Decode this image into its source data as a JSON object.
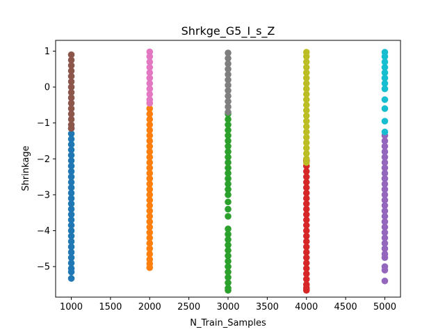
{
  "chart_data": {
    "type": "scatter",
    "title": "Shrkge_G5_I_s_Z",
    "xlabel": "N_Train_Samples",
    "ylabel": "Shrinkage",
    "xlim": [
      800,
      5200
    ],
    "ylim": [
      -5.85,
      1.3
    ],
    "xticks": [
      1000,
      1500,
      2000,
      2500,
      3000,
      3500,
      4000,
      4500,
      5000
    ],
    "yticks": [
      -5,
      -4,
      -3,
      -2,
      -1,
      0,
      1
    ],
    "grid": false,
    "series": [
      {
        "x": 1000,
        "color": "#1f77b4",
        "y": [
          -1.15,
          -1.3,
          -1.45,
          -1.6,
          -1.75,
          -1.9,
          -2.05,
          -2.2,
          -2.35,
          -2.5,
          -2.65,
          -2.8,
          -2.95,
          -3.1,
          -3.25,
          -3.4,
          -3.55,
          -3.7,
          -3.85,
          -4.0,
          -4.15,
          -4.3,
          -4.45,
          -4.6,
          -4.75,
          -4.9,
          -5.05,
          -5.15,
          -5.33
        ]
      },
      {
        "x": 2000,
        "color": "#ff7f0e",
        "y": [
          -0.45,
          -0.6,
          -0.75,
          -0.9,
          -1.05,
          -1.2,
          -1.35,
          -1.5,
          -1.65,
          -1.8,
          -1.95,
          -2.1,
          -2.25,
          -2.4,
          -2.55,
          -2.7,
          -2.85,
          -3.0,
          -3.15,
          -3.3,
          -3.45,
          -3.6,
          -3.75,
          -3.9,
          -4.05,
          -4.2,
          -4.35,
          -4.5,
          -4.65,
          -4.8,
          -4.92,
          -5.03
        ]
      },
      {
        "x": 3000,
        "color": "#2ca02c",
        "y": [
          -0.75,
          -0.9,
          -1.05,
          -1.2,
          -1.35,
          -1.5,
          -1.65,
          -1.8,
          -1.95,
          -2.1,
          -2.25,
          -2.4,
          -2.55,
          -2.7,
          -2.85,
          -3.0,
          -3.2,
          -3.4,
          -3.6,
          -3.95,
          -4.1,
          -4.25,
          -4.4,
          -4.55,
          -4.7,
          -4.85,
          -5.0,
          -5.15,
          -5.3,
          -5.45,
          -5.6,
          -5.66
        ]
      },
      {
        "x": 4000,
        "color": "#d62728",
        "y": [
          -2.05,
          -2.2,
          -2.35,
          -2.5,
          -2.65,
          -2.8,
          -2.95,
          -3.1,
          -3.25,
          -3.4,
          -3.55,
          -3.7,
          -3.85,
          -4.0,
          -4.15,
          -4.3,
          -4.45,
          -4.6,
          -4.75,
          -4.9,
          -5.05,
          -5.2,
          -5.35,
          -5.5,
          -5.6,
          -5.66
        ]
      },
      {
        "x": 5000,
        "color": "#9467bd",
        "y": [
          -1.35,
          -1.5,
          -1.65,
          -1.8,
          -1.95,
          -2.1,
          -2.25,
          -2.4,
          -2.55,
          -2.7,
          -2.85,
          -3.0,
          -3.15,
          -3.3,
          -3.45,
          -3.6,
          -3.75,
          -3.9,
          -4.05,
          -4.2,
          -4.35,
          -4.5,
          -4.65,
          -4.75,
          -5.0,
          -5.1,
          -5.4
        ]
      },
      {
        "x": 1000,
        "color": "#8c564b",
        "y": [
          0.9,
          0.75,
          0.6,
          0.45,
          0.3,
          0.15,
          0.0,
          -0.15,
          -0.3,
          -0.45,
          -0.6,
          -0.75,
          -0.9,
          -1.05,
          -1.15
        ]
      },
      {
        "x": 2000,
        "color": "#e377c2",
        "y": [
          0.98,
          0.85,
          0.7,
          0.55,
          0.4,
          0.25,
          0.1,
          -0.05,
          -0.2,
          -0.35,
          -0.45
        ]
      },
      {
        "x": 3000,
        "color": "#7f7f7f",
        "y": [
          0.95,
          0.8,
          0.65,
          0.5,
          0.35,
          0.2,
          0.05,
          -0.1,
          -0.25,
          -0.4,
          -0.55,
          -0.7
        ]
      },
      {
        "x": 4000,
        "color": "#bcbd22",
        "y": [
          0.97,
          0.85,
          0.7,
          0.55,
          0.4,
          0.25,
          0.1,
          -0.05,
          -0.2,
          -0.35,
          -0.5,
          -0.65,
          -0.8,
          -0.95,
          -1.1,
          -1.25,
          -1.4,
          -1.55,
          -1.7,
          -1.85,
          -2.0,
          -2.1
        ]
      },
      {
        "x": 5000,
        "color": "#17becf",
        "y": [
          0.97,
          0.85,
          0.7,
          0.55,
          0.4,
          0.25,
          0.1,
          -0.05,
          -0.35,
          -0.6,
          -0.95,
          -1.25
        ]
      }
    ]
  }
}
